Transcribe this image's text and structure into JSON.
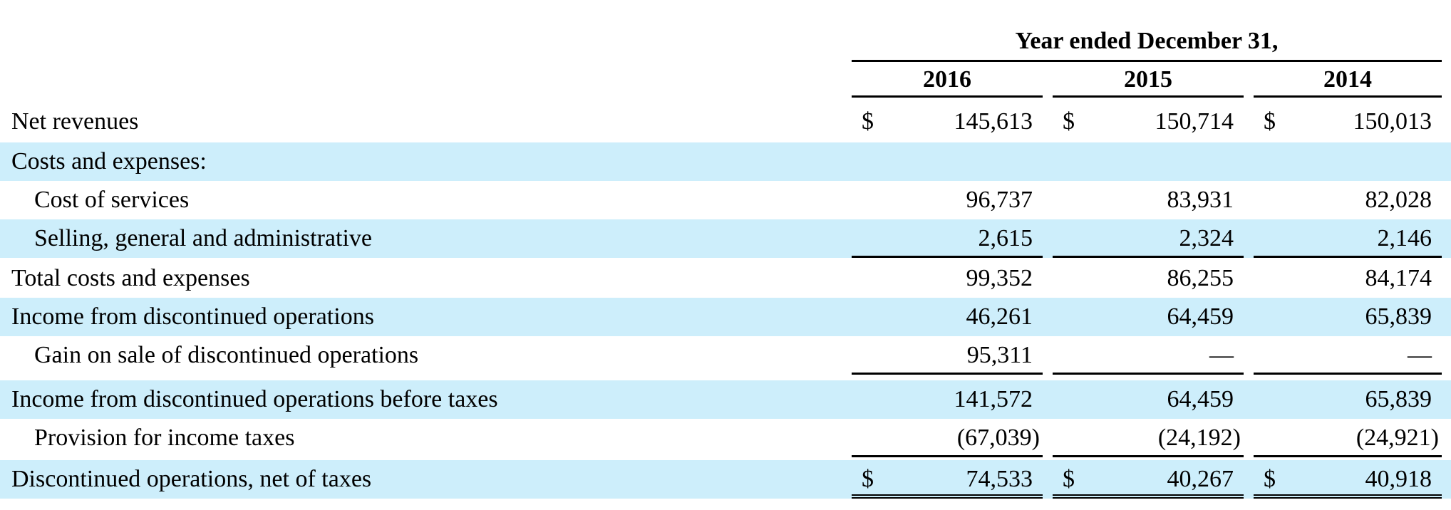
{
  "header": {
    "period_label": "Year ended December 31,",
    "years": [
      "2016",
      "2015",
      "2014"
    ]
  },
  "rows": [
    {
      "label": "Net revenues",
      "values": [
        "145,613",
        "150,714",
        "150,013"
      ],
      "currency": true
    },
    {
      "label": "Costs and expenses:",
      "values": [
        "",
        "",
        ""
      ]
    },
    {
      "label": "Cost of services",
      "values": [
        "96,737",
        "83,931",
        "82,028"
      ]
    },
    {
      "label": "Selling, general and administrative",
      "values": [
        "2,615",
        "2,324",
        "2,146"
      ]
    },
    {
      "label": "Total costs and expenses",
      "values": [
        "99,352",
        "86,255",
        "84,174"
      ]
    },
    {
      "label": "Income from discontinued operations",
      "values": [
        "46,261",
        "64,459",
        "65,839"
      ]
    },
    {
      "label": "Gain on sale of discontinued operations",
      "values": [
        "95,311",
        "—",
        "—"
      ]
    },
    {
      "label": "Income from discontinued operations before taxes",
      "values": [
        "141,572",
        "64,459",
        "65,839"
      ]
    },
    {
      "label": "Provision for income taxes",
      "values": [
        "(67,039)",
        "(24,192)",
        "(24,921)"
      ]
    },
    {
      "label": "Discontinued operations, net of taxes",
      "values": [
        "74,533",
        "40,267",
        "40,918"
      ],
      "currency": true
    }
  ],
  "currency_symbol": "$",
  "colors": {
    "row_shading": "#cdeefb",
    "rule": "#000000"
  }
}
